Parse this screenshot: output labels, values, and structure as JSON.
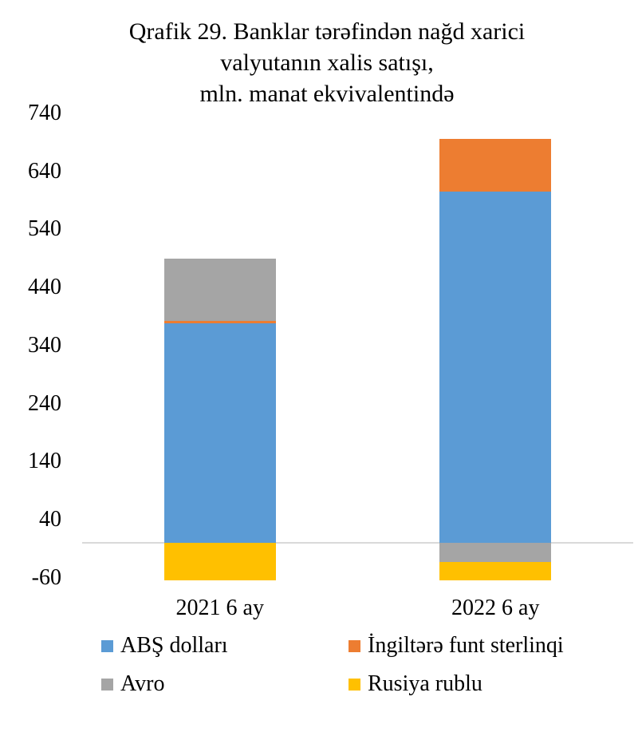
{
  "chart_data": {
    "type": "bar",
    "stacked": true,
    "title_lines": [
      "Qrafik 29. Banklar tərəfindən nağd xarici",
      "valyutanın xalis satışı,",
      "mln. manat ekvivalentində"
    ],
    "categories": [
      "2021 6 ay",
      "2022 6 ay"
    ],
    "series": [
      {
        "name": "ABŞ dolları",
        "color": "#5B9BD5",
        "values": [
          378,
          605
        ]
      },
      {
        "name": "İngiltərə funt sterlinqi",
        "color": "#ED7D31",
        "values": [
          4,
          91
        ]
      },
      {
        "name": "Avro",
        "color": "#A5A5A5",
        "values": [
          108,
          -33
        ]
      },
      {
        "name": "Rusiya rublu",
        "color": "#FFC000",
        "values": [
          -65,
          -32
        ]
      }
    ],
    "yticks": [
      740,
      640,
      540,
      440,
      340,
      240,
      140,
      40,
      -60
    ],
    "ylim": [
      -80,
      760
    ],
    "xlabel": "",
    "ylabel": "",
    "grid": false,
    "legend_position": "bottom",
    "axis_line_color": "#D9D9D9",
    "text_color": "#000000"
  }
}
